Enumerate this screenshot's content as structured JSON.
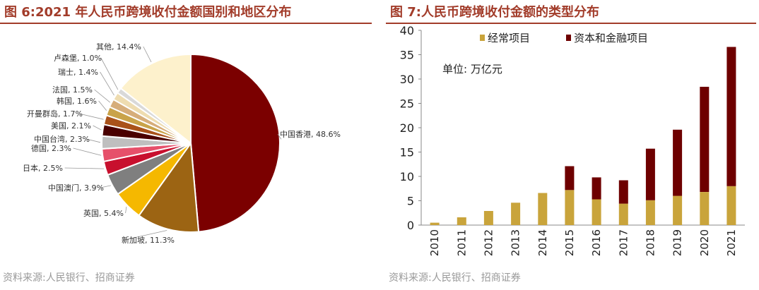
{
  "left_panel": {
    "title": "图 6:2021 年人民币跨境收付金额国别和地区分布",
    "source": "资料来源:人民银行、招商证券"
  },
  "right_panel": {
    "title": "图 7:人民币跨境收付金额的类型分布",
    "source": "资料来源:人民银行、招商证券",
    "unit": "单位: 万亿元"
  },
  "chart_data": [
    {
      "type": "pie",
      "title": "",
      "slices": [
        {
          "label": "中国香港, 48.6%",
          "value": 48.6,
          "color": "#7b0000"
        },
        {
          "label": "新加坡, 11.3%",
          "value": 11.3,
          "color": "#9c6413"
        },
        {
          "label": "英国, 5.4%",
          "value": 5.4,
          "color": "#f5b800"
        },
        {
          "label": "中国澳门, 3.9%",
          "value": 3.9,
          "color": "#7f7f7f"
        },
        {
          "label": "日本, 2.5%",
          "value": 2.5,
          "color": "#c8102e"
        },
        {
          "label": "德国, 2.3%",
          "value": 2.3,
          "color": "#e6506a"
        },
        {
          "label": "中国台湾, 2.3%",
          "value": 2.3,
          "color": "#bfbfbf"
        },
        {
          "label": "美国, 2.1%",
          "value": 2.1,
          "color": "#4a0000"
        },
        {
          "label": "开曼群岛, 1.7%",
          "value": 1.7,
          "color": "#a9521a"
        },
        {
          "label": "韩国, 1.6%",
          "value": 1.6,
          "color": "#c9a34a"
        },
        {
          "label": "法国, 1.5%",
          "value": 1.5,
          "color": "#d6ad7a"
        },
        {
          "label": "瑞士, 1.4%",
          "value": 1.4,
          "color": "#eedcb0"
        },
        {
          "label": "卢森堡, 1.0%",
          "value": 1.0,
          "color": "#d9d9d9"
        },
        {
          "label": "其他, 14.4%",
          "value": 14.4,
          "color": "#fdf1cc"
        }
      ]
    },
    {
      "type": "bar",
      "stacked": true,
      "title": "",
      "categories": [
        "2010",
        "2011",
        "2012",
        "2013",
        "2014",
        "2015",
        "2016",
        "2017",
        "2018",
        "2019",
        "2020",
        "2021"
      ],
      "series": [
        {
          "name": "经常项目",
          "color": "#c9a43b",
          "values": [
            0.5,
            1.6,
            2.9,
            4.6,
            6.6,
            7.2,
            5.3,
            4.4,
            5.1,
            6.0,
            6.8,
            8.0
          ]
        },
        {
          "name": "资本和金融项目",
          "color": "#6e0000",
          "values": [
            0,
            0,
            0,
            0,
            0,
            4.9,
            4.5,
            4.8,
            10.6,
            13.6,
            21.6,
            28.6
          ]
        }
      ],
      "ylim": [
        0,
        40
      ],
      "yticks": [
        0,
        5,
        10,
        15,
        20,
        25,
        30,
        35,
        40
      ],
      "legend_position": "top",
      "grid": false
    }
  ]
}
